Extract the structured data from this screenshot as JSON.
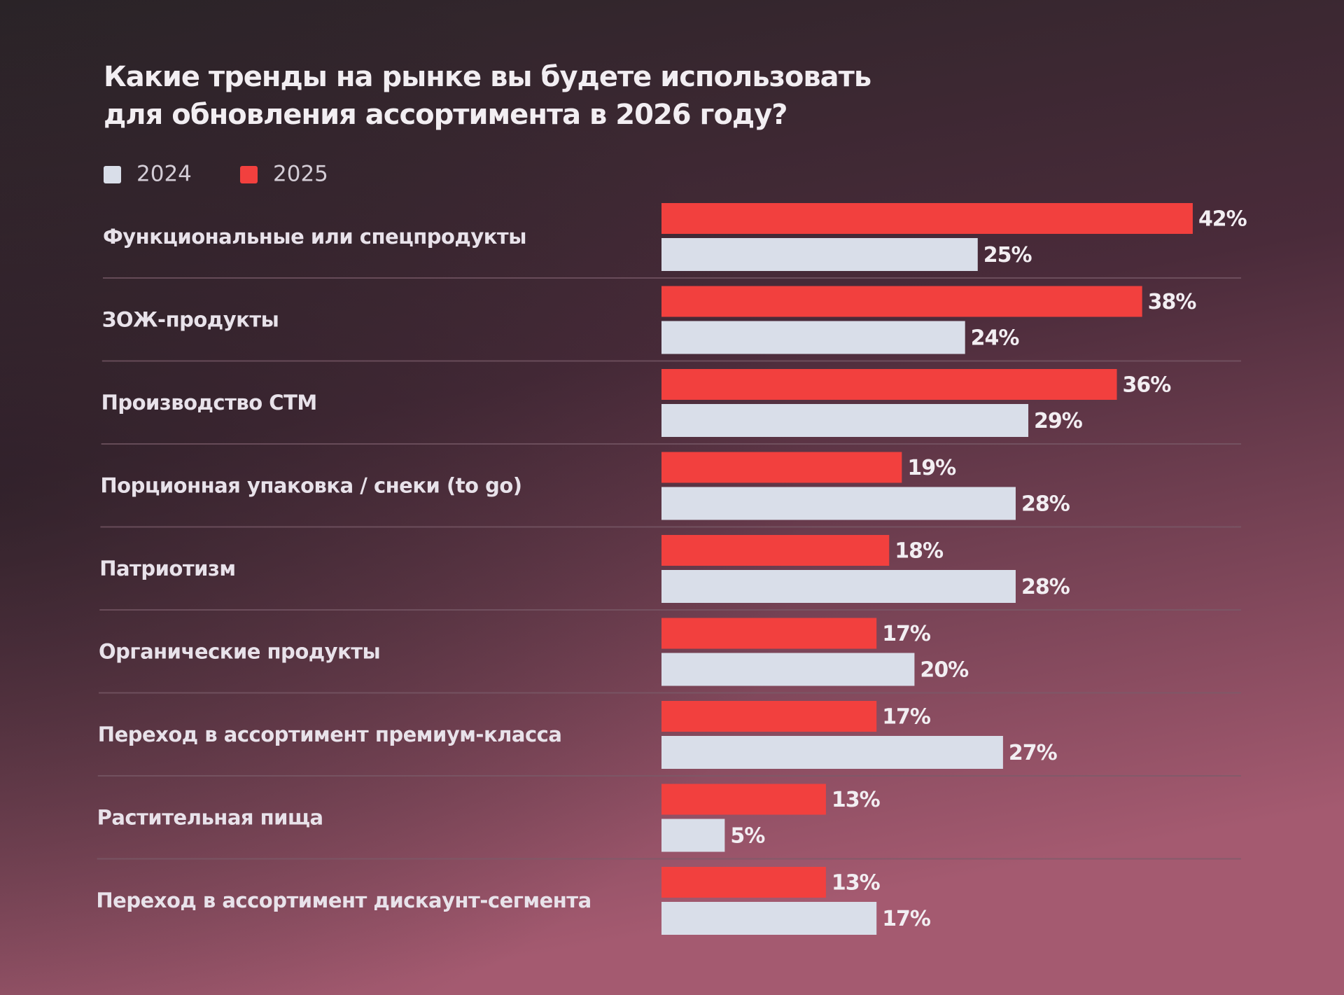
{
  "chart_data": {
    "type": "bar",
    "orientation": "horizontal",
    "title": [
      "Какие тренды на рынке вы будете использовать",
      "для обновления ассортимента в 2026 году?"
    ],
    "categories": [
      "Функциональные или спецпродукты",
      "ЗОЖ-продукты",
      "Производство СТМ",
      "Порционная упаковка / снеки (to go)",
      "Патриотизм",
      "Органические продукты",
      "Переход в ассортимент премиум-класса",
      "Растительная пища",
      "Переход в ассортимент дискаунт-сегмента"
    ],
    "series": [
      {
        "name": "2024",
        "color": "#d9dee9",
        "values": [
          25,
          24,
          29,
          28,
          28,
          20,
          27,
          5,
          17
        ],
        "value_labels": [
          "25%",
          "24%",
          "29%",
          "28%",
          "28%",
          "20%",
          "27%",
          "5%",
          "17%"
        ]
      },
      {
        "name": "2025",
        "color": "#f2403e",
        "values": [
          42,
          38,
          36,
          19,
          18,
          17,
          17,
          13,
          13
        ],
        "value_labels": [
          "42%",
          "38%",
          "36%",
          "19%",
          "18%",
          "17%",
          "17%",
          "13%",
          "13%"
        ]
      }
    ],
    "legend": "top-left"
  }
}
